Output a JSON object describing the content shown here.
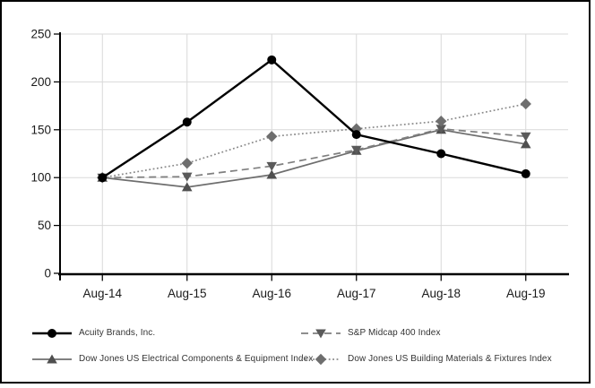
{
  "chart_data": {
    "type": "line",
    "title": "",
    "xlabel": "",
    "ylabel": "",
    "x_categories": [
      "Aug-14",
      "Aug-15",
      "Aug-16",
      "Aug-17",
      "Aug-18",
      "Aug-19"
    ],
    "y_ticks": [
      0,
      50,
      100,
      150,
      200,
      250
    ],
    "ylim": [
      0,
      250
    ],
    "grid": true,
    "legend_position": "bottom",
    "series": [
      {
        "name": "Acuity Brands, Inc.",
        "marker": "circle",
        "line_style": "solid",
        "color": "#000000",
        "marker_color": "#000000",
        "values": [
          100,
          158,
          223,
          145,
          125,
          104
        ]
      },
      {
        "name": "S&P Midcap 400 Index",
        "marker": "triangle-down",
        "line_style": "dashed",
        "color": "#7f7f7f",
        "marker_color": "#5a5a5a",
        "values": [
          100,
          101,
          112,
          129,
          151,
          143
        ]
      },
      {
        "name": "Dow Jones US Electrical Components & Equipment Index",
        "marker": "triangle-up",
        "line_style": "solid",
        "color": "#6e6e6e",
        "marker_color": "#4f4f4f",
        "values": [
          100,
          90,
          103,
          128,
          150,
          135
        ]
      },
      {
        "name": "Dow Jones US Building Materials & Fixtures Index",
        "marker": "diamond",
        "line_style": "dotted",
        "color": "#8a8a8a",
        "marker_color": "#6e6e6e",
        "values": [
          100,
          115,
          143,
          151,
          159,
          177
        ]
      }
    ]
  },
  "colors": {
    "gridline": "#d9d9d9",
    "axis": "#000000",
    "tick_label": "#1a1a1a",
    "legend_text": "#333333",
    "frame_border": "#000000"
  }
}
